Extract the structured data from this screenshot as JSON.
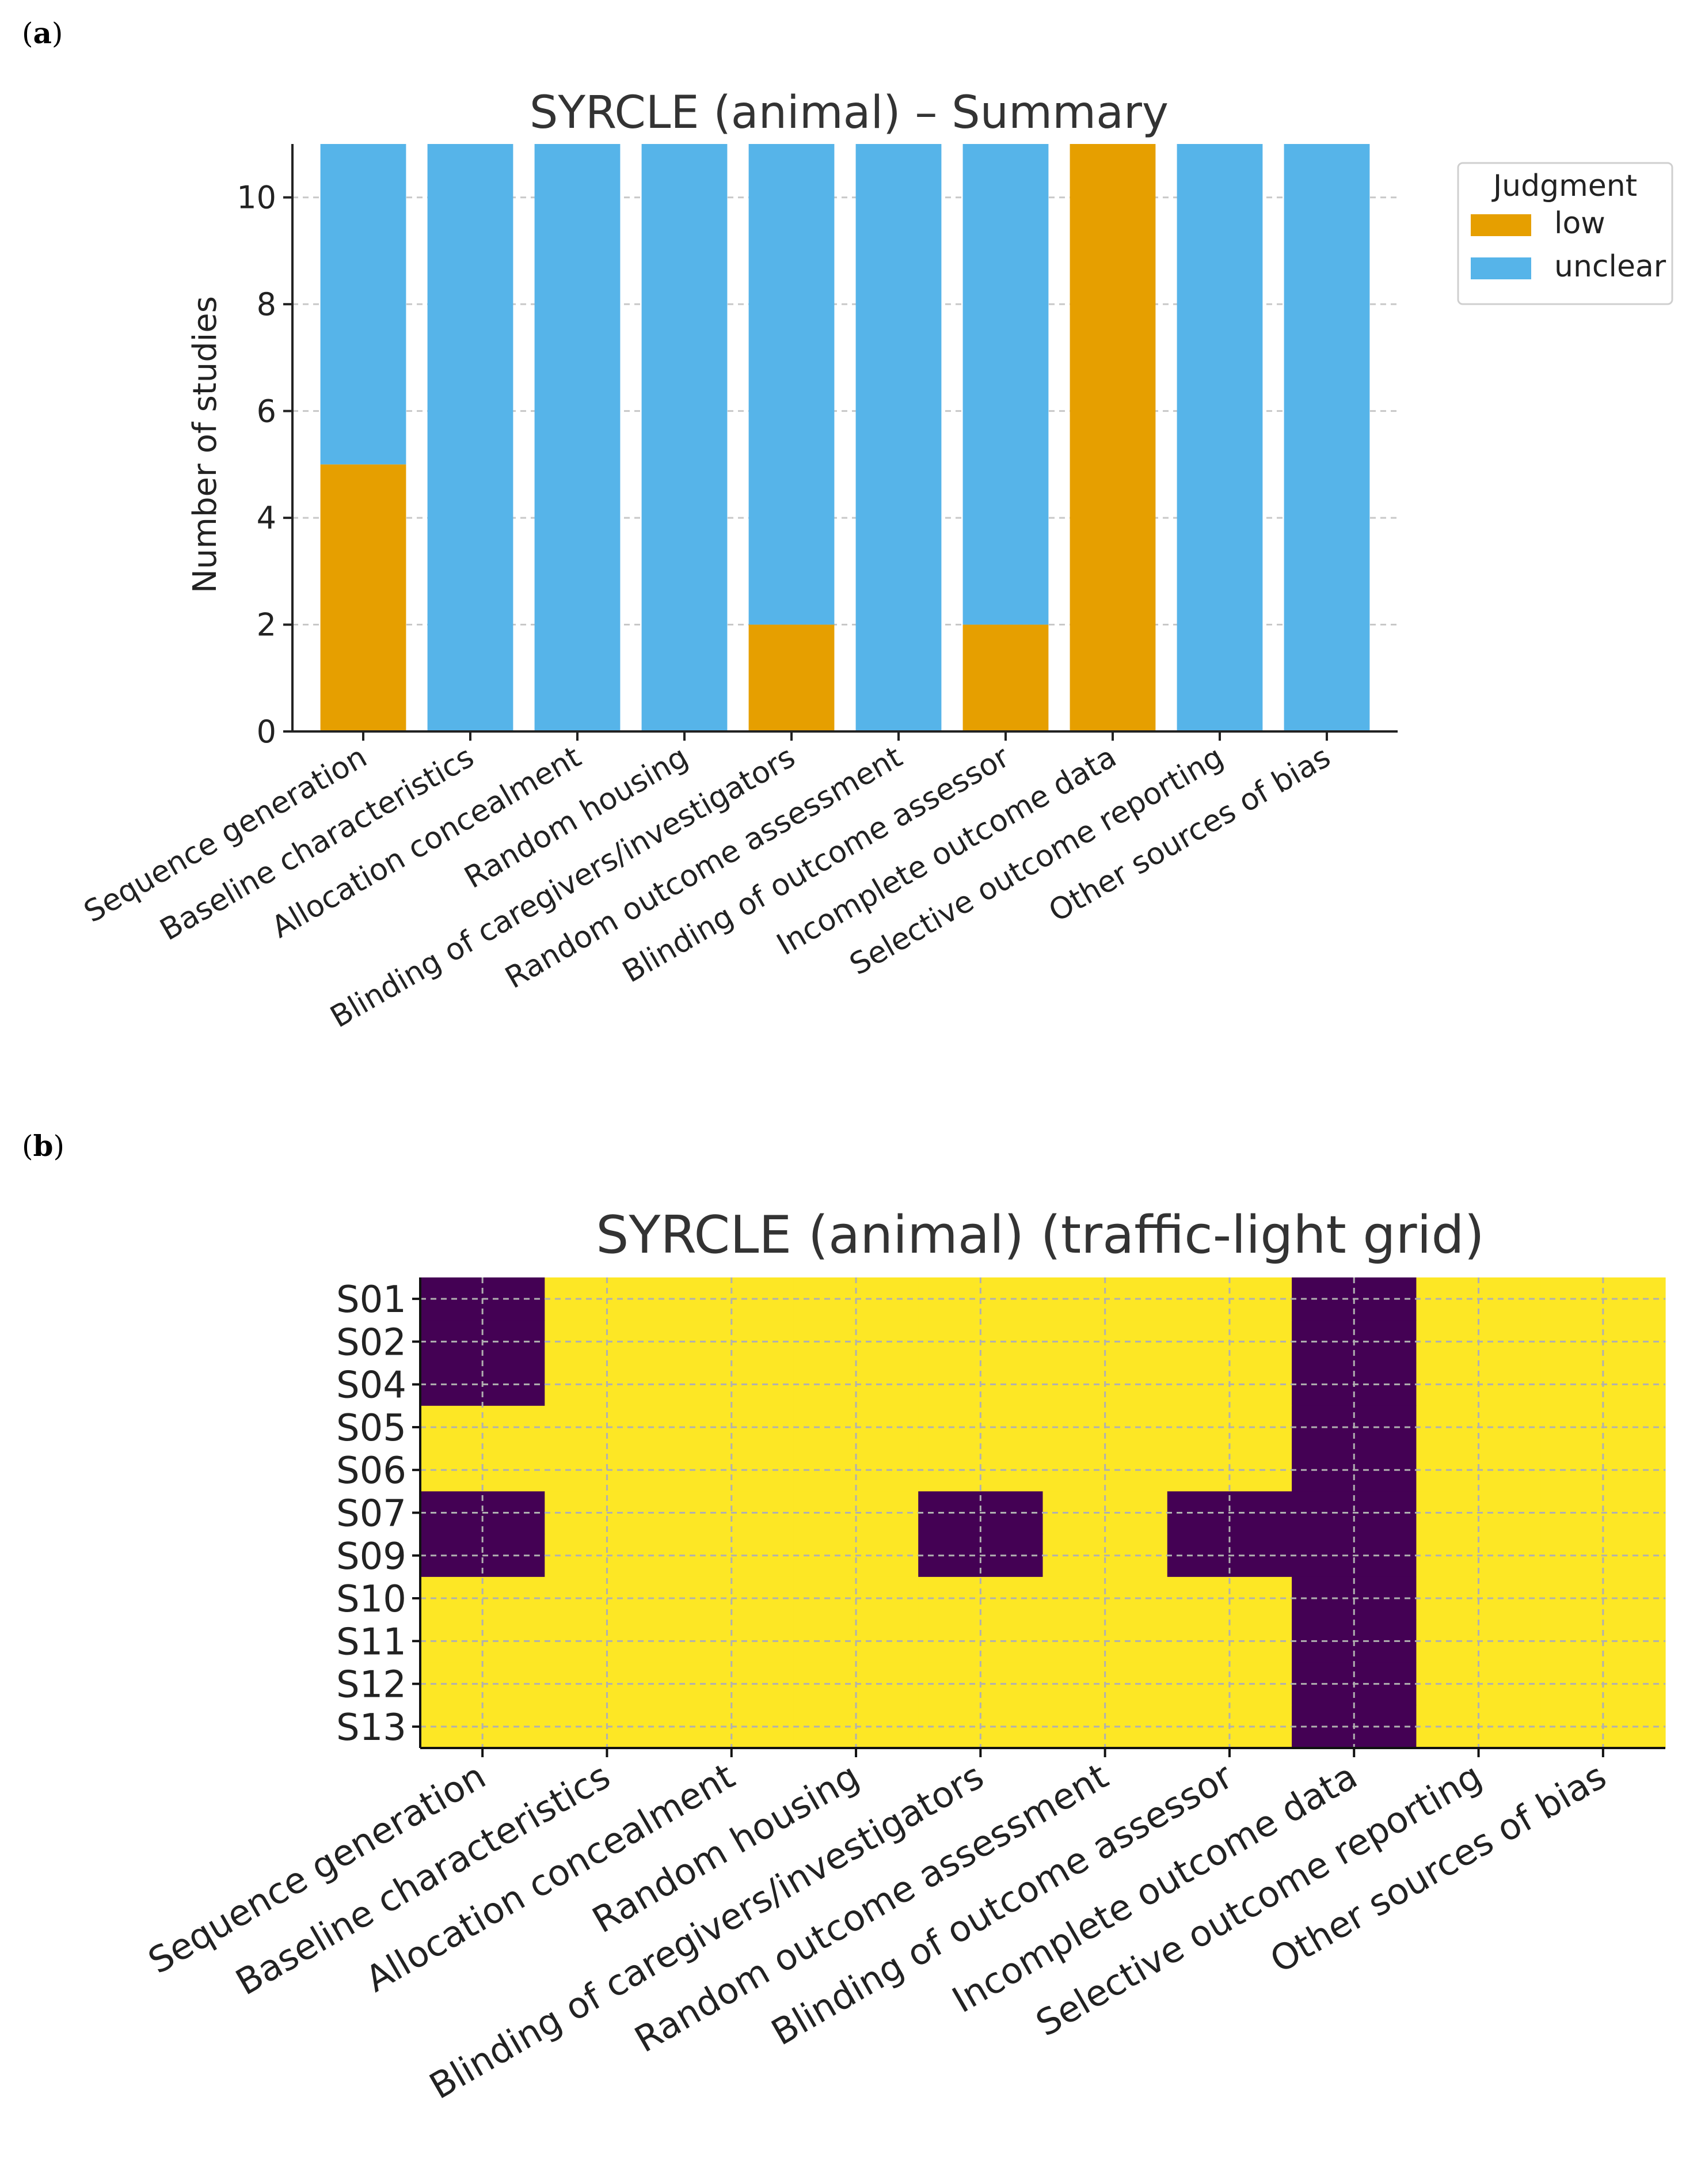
{
  "panels": {
    "a_label": "a",
    "b_label": "b"
  },
  "colors": {
    "low": "#E69F00",
    "unclear": "#56B4E9",
    "grid_low": "#440154",
    "grid_unclear": "#FDE725"
  },
  "chart_data": [
    {
      "type": "bar",
      "stacked": true,
      "title": "SYRCLE (animal) – Summary",
      "xlabel": "",
      "ylabel": "Number of studies",
      "categories": [
        "Sequence generation",
        "Baseline characteristics",
        "Allocation concealment",
        "Random housing",
        "Blinding of caregivers/investigators",
        "Random outcome assessment",
        "Blinding of outcome assessor",
        "Incomplete outcome data",
        "Selective outcome reporting",
        "Other sources of bias"
      ],
      "series": [
        {
          "name": "low",
          "values": [
            5,
            0,
            0,
            0,
            2,
            0,
            2,
            11,
            0,
            0
          ]
        },
        {
          "name": "unclear",
          "values": [
            6,
            11,
            11,
            11,
            9,
            11,
            9,
            0,
            11,
            11
          ]
        }
      ],
      "ylim": [
        0,
        11
      ],
      "yticks": [
        0,
        2,
        4,
        6,
        8,
        10
      ],
      "grid": true,
      "legend": {
        "title": "Judgment",
        "placement": "top-right, outside"
      }
    },
    {
      "type": "heatmap",
      "title": "SYRCLE (animal) (traffic-light grid)",
      "columns": [
        "Sequence generation",
        "Baseline characteristics",
        "Allocation concealment",
        "Random housing",
        "Blinding of caregivers/investigators",
        "Random outcome assessment",
        "Blinding of outcome assessor",
        "Incomplete outcome data",
        "Selective outcome reporting",
        "Other sources of bias"
      ],
      "rows": [
        "S01",
        "S02",
        "S04",
        "S05",
        "S06",
        "S07",
        "S09",
        "S10",
        "S11",
        "S12",
        "S13"
      ],
      "values": [
        [
          "low",
          "unclear",
          "unclear",
          "unclear",
          "unclear",
          "unclear",
          "unclear",
          "low",
          "unclear",
          "unclear"
        ],
        [
          "low",
          "unclear",
          "unclear",
          "unclear",
          "unclear",
          "unclear",
          "unclear",
          "low",
          "unclear",
          "unclear"
        ],
        [
          "low",
          "unclear",
          "unclear",
          "unclear",
          "unclear",
          "unclear",
          "unclear",
          "low",
          "unclear",
          "unclear"
        ],
        [
          "unclear",
          "unclear",
          "unclear",
          "unclear",
          "unclear",
          "unclear",
          "unclear",
          "low",
          "unclear",
          "unclear"
        ],
        [
          "unclear",
          "unclear",
          "unclear",
          "unclear",
          "unclear",
          "unclear",
          "unclear",
          "low",
          "unclear",
          "unclear"
        ],
        [
          "low",
          "unclear",
          "unclear",
          "unclear",
          "low",
          "unclear",
          "low",
          "low",
          "unclear",
          "unclear"
        ],
        [
          "low",
          "unclear",
          "unclear",
          "unclear",
          "low",
          "unclear",
          "low",
          "low",
          "unclear",
          "unclear"
        ],
        [
          "unclear",
          "unclear",
          "unclear",
          "unclear",
          "unclear",
          "unclear",
          "unclear",
          "low",
          "unclear",
          "unclear"
        ],
        [
          "unclear",
          "unclear",
          "unclear",
          "unclear",
          "unclear",
          "unclear",
          "unclear",
          "low",
          "unclear",
          "unclear"
        ],
        [
          "unclear",
          "unclear",
          "unclear",
          "unclear",
          "unclear",
          "unclear",
          "unclear",
          "low",
          "unclear",
          "unclear"
        ],
        [
          "unclear",
          "unclear",
          "unclear",
          "unclear",
          "unclear",
          "unclear",
          "unclear",
          "low",
          "unclear",
          "unclear"
        ]
      ],
      "grid": true
    }
  ]
}
